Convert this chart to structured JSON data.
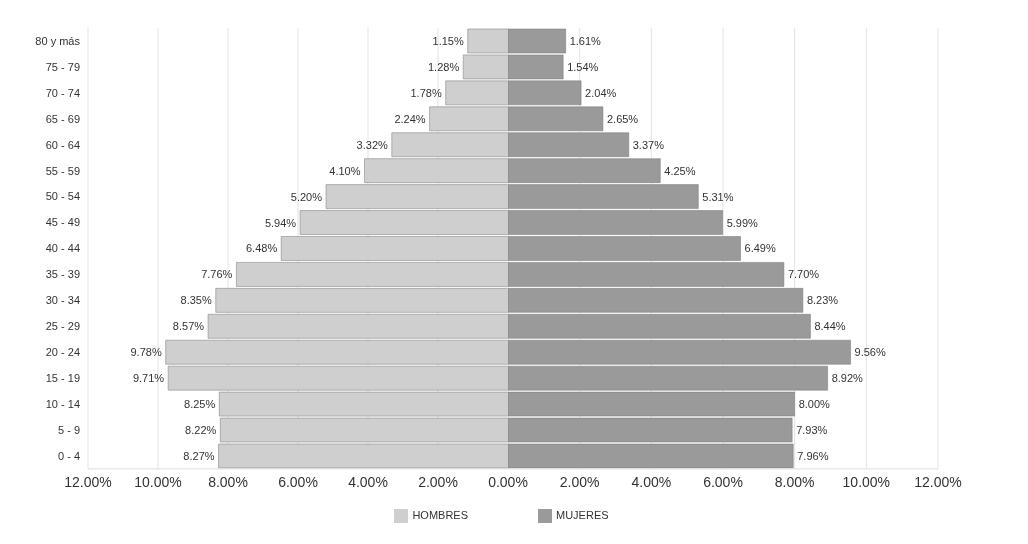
{
  "chart_data": [
    {
      "type": "bar",
      "orientation": "horizontal",
      "categories": [
        "80 y más",
        "75 - 79",
        "70 - 74",
        "65 - 69",
        "60 - 64",
        "55 - 59",
        "50 - 54",
        "45 - 49",
        "40 - 44",
        "35 - 39",
        "30 - 34",
        "25 - 29",
        "20 - 24",
        "15 - 19",
        "10 - 14",
        "5 - 9",
        "0 - 4"
      ],
      "series": [
        {
          "name": "HOMBRES",
          "color": "#cfcfcf",
          "values": [
            1.15,
            1.28,
            1.78,
            2.24,
            3.32,
            4.1,
            5.2,
            5.94,
            6.48,
            7.76,
            8.35,
            8.57,
            9.78,
            9.71,
            8.25,
            8.22,
            8.27
          ],
          "value_labels": [
            "1.15%",
            "1.28%",
            "1.78%",
            "2.24%",
            "3.32%",
            "4.10%",
            "5.20%",
            "5.94%",
            "6.48%",
            "7.76%",
            "8.35%",
            "8.57%",
            "9.78%",
            "9.71%",
            "8.25%",
            "8.22%",
            "8.27%"
          ]
        }
      ],
      "xlim": [
        12,
        0
      ],
      "xticks": [
        {
          "value": 12,
          "label": "12.00%"
        },
        {
          "value": 10,
          "label": "10.00%"
        },
        {
          "value": 8,
          "label": "8.00%"
        },
        {
          "value": 6,
          "label": "6.00%"
        },
        {
          "value": 4,
          "label": "4.00%"
        },
        {
          "value": 2,
          "label": "2.00%"
        }
      ],
      "grid": "x",
      "legend": "bottom"
    },
    {
      "type": "bar",
      "orientation": "horizontal",
      "tick_labels": "x",
      "series": [
        {
          "name": "MUJERES",
          "color": "#9a9a9a",
          "values": [
            1.61,
            1.54,
            2.04,
            2.65,
            3.37,
            4.25,
            5.31,
            5.99,
            6.49,
            7.7,
            8.23,
            8.44,
            9.56,
            8.92,
            8.0,
            7.93,
            7.96
          ],
          "value_labels": [
            "1.61%",
            "1.54%",
            "2.04%",
            "2.65%",
            "3.37%",
            "4.25%",
            "5.31%",
            "5.99%",
            "6.49%",
            "7.70%",
            "8.23%",
            "8.44%",
            "9.56%",
            "8.92%",
            "8.00%",
            "7.93%",
            "7.96%"
          ]
        }
      ],
      "xlim": [
        0,
        12
      ],
      "xticks": [
        {
          "value": 0,
          "label": "0.00%"
        },
        {
          "value": 2,
          "label": "2.00%"
        },
        {
          "value": 4,
          "label": "4.00%"
        },
        {
          "value": 6,
          "label": "6.00%"
        },
        {
          "value": 8,
          "label": "8.00%"
        },
        {
          "value": 10,
          "label": "10.00%"
        },
        {
          "value": 12,
          "label": "12.00%"
        }
      ],
      "grid": "x",
      "legend": "bottom"
    }
  ]
}
